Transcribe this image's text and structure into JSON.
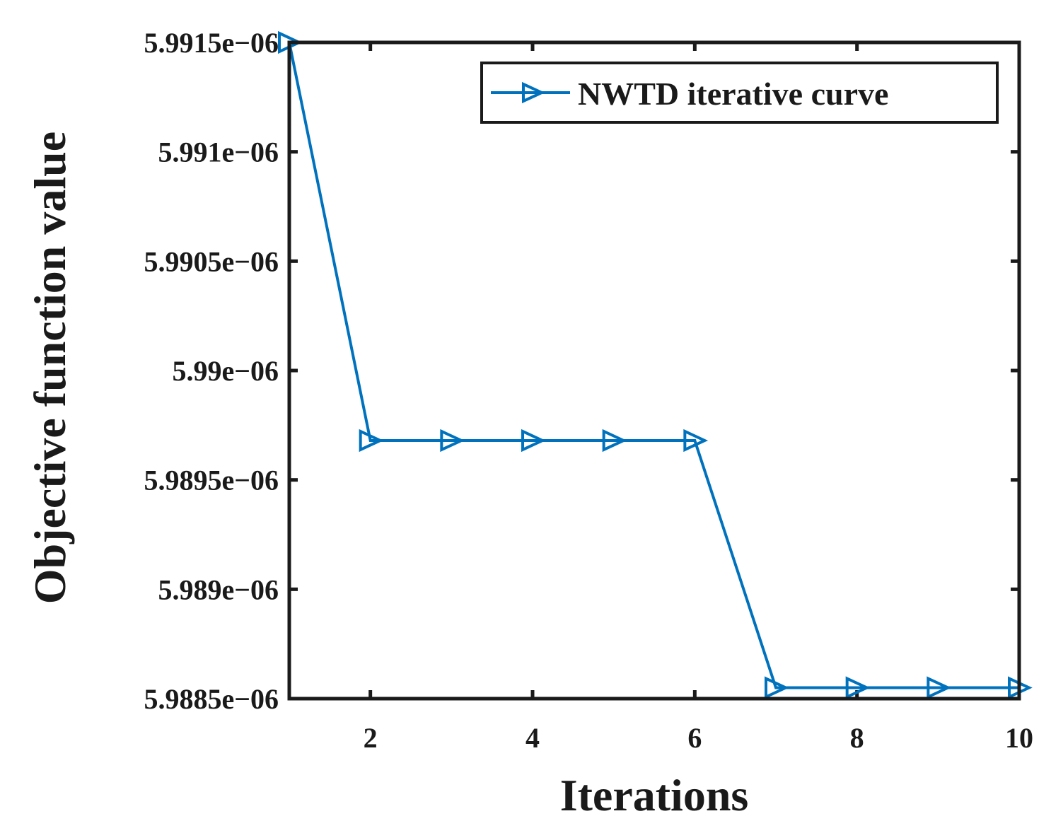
{
  "chart_data": {
    "type": "line",
    "title": "",
    "xlabel": "Iterations",
    "ylabel": "Objective function value",
    "xlim": [
      1,
      10
    ],
    "ylim": [
      5.9885e-06,
      5.9915e-06
    ],
    "x_ticks": [
      2,
      4,
      6,
      8,
      10
    ],
    "x_tick_labels": [
      "2",
      "4",
      "6",
      "8",
      "10"
    ],
    "y_ticks": [
      5.9885e-06,
      5.989e-06,
      5.9895e-06,
      5.99e-06,
      5.9905e-06,
      5.991e-06,
      5.9915e-06
    ],
    "y_tick_labels": [
      "5.9885e−06",
      "5.989e−06",
      "5.9895e−06",
      "5.99e−06",
      "5.9905e−06",
      "5.991e−06",
      "5.9915e−06"
    ],
    "grid": false,
    "legend_position": "top-right",
    "series": [
      {
        "name": "NWTD iterative curve",
        "color": "#0072BD",
        "marker": "triangle-right",
        "x": [
          1,
          2,
          3,
          4,
          5,
          6,
          7,
          8,
          9,
          10
        ],
        "y": [
          5.9915e-06,
          5.98968e-06,
          5.98968e-06,
          5.98968e-06,
          5.98968e-06,
          5.98968e-06,
          5.98855e-06,
          5.98855e-06,
          5.98855e-06,
          5.98855e-06
        ]
      }
    ]
  }
}
